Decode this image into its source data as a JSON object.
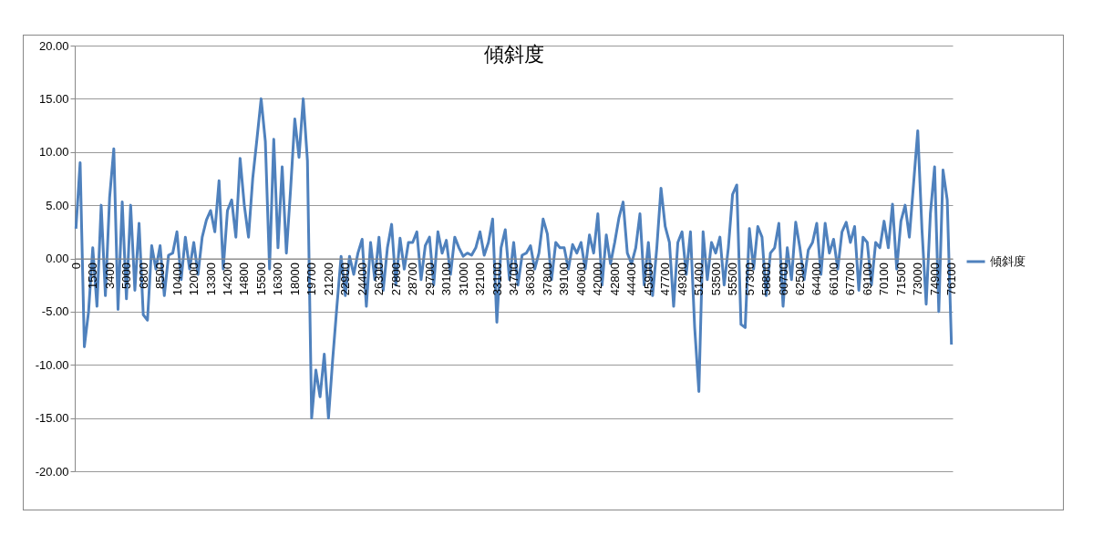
{
  "chart_data": {
    "type": "line",
    "title": "傾斜度",
    "categories": [
      "0",
      null,
      null,
      null,
      "1500",
      null,
      null,
      null,
      "3400",
      null,
      null,
      null,
      "5000",
      null,
      null,
      null,
      "6800",
      null,
      null,
      null,
      "8500",
      null,
      null,
      null,
      "10400",
      null,
      null,
      null,
      "12000",
      null,
      null,
      null,
      "13300",
      null,
      null,
      null,
      "14200",
      null,
      null,
      null,
      "14800",
      null,
      null,
      null,
      "15500",
      null,
      null,
      null,
      "16300",
      null,
      null,
      null,
      "18000",
      null,
      null,
      null,
      "19700",
      null,
      null,
      null,
      "21200",
      null,
      null,
      null,
      "22900",
      null,
      null,
      null,
      "24400",
      null,
      null,
      null,
      "26300",
      null,
      null,
      null,
      "27800",
      null,
      null,
      null,
      "28700",
      null,
      null,
      null,
      "29700",
      null,
      null,
      null,
      "30100",
      null,
      null,
      null,
      "31000",
      null,
      null,
      null,
      "32100",
      null,
      null,
      null,
      "33100",
      null,
      null,
      null,
      "34700",
      null,
      null,
      null,
      "36300",
      null,
      null,
      null,
      "37800",
      null,
      null,
      null,
      "39100",
      null,
      null,
      null,
      "40600",
      null,
      null,
      null,
      "42000",
      null,
      null,
      null,
      "42800",
      null,
      null,
      null,
      "44400",
      null,
      null,
      null,
      "45900",
      null,
      null,
      null,
      "47700",
      null,
      null,
      null,
      "49300",
      null,
      null,
      null,
      "51400",
      null,
      null,
      null,
      "53500",
      null,
      null,
      null,
      "55500",
      null,
      null,
      null,
      "57300",
      null,
      null,
      null,
      "58800",
      null,
      null,
      null,
      "60700",
      null,
      null,
      null,
      "62500",
      null,
      null,
      null,
      "64400",
      null,
      null,
      null,
      "66100",
      null,
      null,
      null,
      "67700",
      null,
      null,
      null,
      "69100",
      null,
      null,
      null,
      "70100",
      null,
      null,
      null,
      "71500",
      null,
      null,
      null,
      "73000",
      null,
      null,
      null,
      "74900",
      null,
      null,
      null,
      "76100"
    ],
    "series": [
      {
        "name": "傾斜度",
        "color": "#4f81bd",
        "values": [
          2.8,
          9.0,
          -8.3,
          -5.0,
          1.0,
          -4.5,
          5.0,
          -3.5,
          5.7,
          10.3,
          -4.8,
          5.3,
          -3.8,
          5.0,
          -3.0,
          3.3,
          -5.3,
          -5.8,
          1.2,
          -1.0,
          1.2,
          -3.5,
          0.3,
          0.5,
          2.5,
          -2.0,
          2.0,
          -1.0,
          1.5,
          -1.5,
          2.0,
          3.6,
          4.5,
          2.5,
          7.3,
          -1.0,
          4.5,
          5.5,
          2.0,
          9.4,
          5.0,
          2.0,
          7.5,
          11.2,
          15.0,
          11.0,
          -1.0,
          11.2,
          1.0,
          8.6,
          0.5,
          6.5,
          13.1,
          9.5,
          15.0,
          9.2,
          -15.0,
          -10.5,
          -13.0,
          -9.0,
          -15.0,
          -9.5,
          -4.5,
          0.2,
          -3.5,
          0.2,
          -1.5,
          0.5,
          1.8,
          -4.5,
          1.5,
          -2.0,
          2.0,
          -3.0,
          1.0,
          3.2,
          -2.5,
          1.9,
          -1.0,
          1.5,
          1.5,
          2.5,
          -2.0,
          1.2,
          2.0,
          -2.5,
          2.5,
          0.5,
          1.7,
          -1.5,
          2.0,
          1.0,
          0.2,
          0.5,
          0.3,
          1.0,
          2.5,
          0.3,
          1.5,
          3.7,
          -6.0,
          1.0,
          2.7,
          -2.0,
          1.5,
          -2.5,
          0.3,
          0.5,
          1.2,
          -1.0,
          0.5,
          3.7,
          2.3,
          -2.0,
          1.5,
          1.0,
          1.0,
          -1.0,
          1.3,
          0.5,
          1.5,
          -1.0,
          2.2,
          0.5,
          4.2,
          -2.5,
          2.2,
          -0.5,
          1.5,
          3.8,
          5.3,
          0.5,
          -0.5,
          1.0,
          4.2,
          -2.5,
          1.5,
          -3.5,
          1.0,
          6.6,
          3.0,
          1.5,
          -4.5,
          1.5,
          2.5,
          -1.5,
          2.5,
          -6.5,
          -12.5,
          2.5,
          -2.0,
          1.5,
          0.5,
          2.0,
          -2.5,
          1.0,
          6.0,
          6.9,
          -6.2,
          -6.5,
          2.8,
          -1.0,
          3.0,
          2.0,
          -3.5,
          0.5,
          1.0,
          3.3,
          -4.5,
          1.0,
          -2.0,
          3.4,
          1.0,
          -2.0,
          0.8,
          1.5,
          3.3,
          -1.5,
          3.3,
          0.5,
          1.8,
          -1.0,
          2.5,
          3.4,
          1.5,
          3.0,
          -3.0,
          2.0,
          1.5,
          -2.5,
          1.5,
          1.0,
          3.5,
          1.0,
          5.1,
          -1.0,
          3.5,
          5.0,
          2.0,
          7.0,
          12.0,
          2.7,
          -4.3,
          4.2,
          8.6,
          -5.0,
          8.3,
          5.5,
          -8.1
        ]
      }
    ],
    "ylim": [
      -20,
      20
    ],
    "yticks": [
      {
        "value": -20,
        "label": "-20.00"
      },
      {
        "value": -15,
        "label": "-15.00"
      },
      {
        "value": -10,
        "label": "-10.00"
      },
      {
        "value": -5,
        "label": "-5.00"
      },
      {
        "value": 0,
        "label": "0.00"
      },
      {
        "value": 5,
        "label": "5.00"
      },
      {
        "value": 10,
        "label": "10.00"
      },
      {
        "value": 15,
        "label": "15.00"
      },
      {
        "value": 20,
        "label": "20.00"
      }
    ],
    "grid": "y",
    "legend": "right",
    "marker": "none",
    "line_style": "solid"
  }
}
